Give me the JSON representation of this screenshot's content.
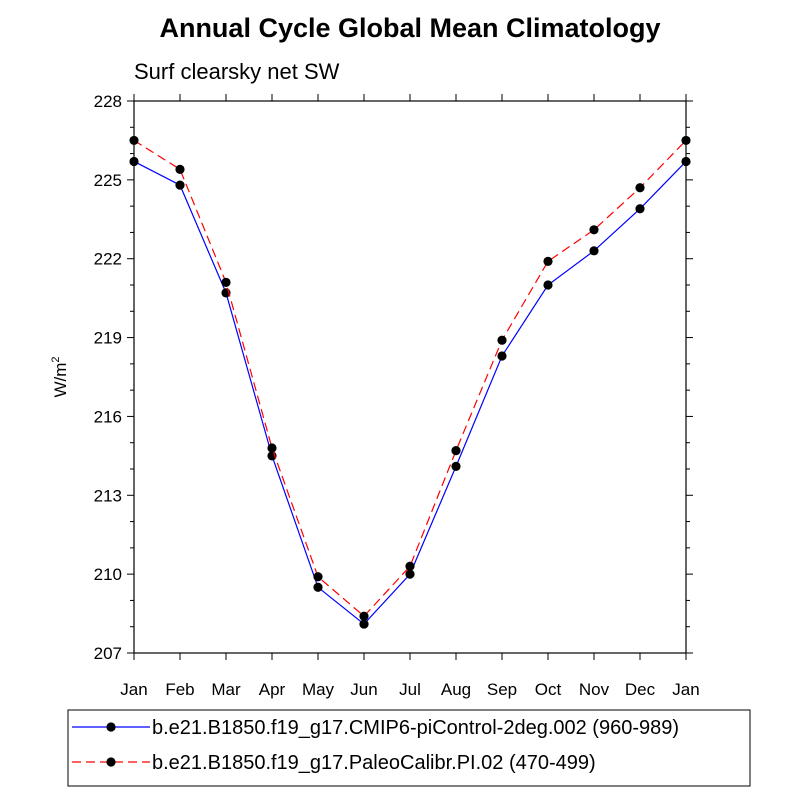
{
  "chart_data": {
    "type": "line",
    "title": "Annual Cycle Global Mean Climatology",
    "subtitle": "Surf clearsky net SW",
    "xlabel": "",
    "ylabel": "W/m",
    "ylabel_sup": "2",
    "categories": [
      "Jan",
      "Feb",
      "Mar",
      "Apr",
      "May",
      "Jun",
      "Jul",
      "Aug",
      "Sep",
      "Oct",
      "Nov",
      "Dec",
      "Jan"
    ],
    "ylim": [
      207,
      228
    ],
    "yticks": [
      207,
      210,
      213,
      216,
      219,
      222,
      225,
      228
    ],
    "ytick_labels": [
      "207",
      "210",
      "213",
      "216",
      "219",
      "222",
      "225",
      "228"
    ],
    "legend_position": "bottom",
    "series": [
      {
        "name": "b.e21.B1850.f19_g17.CMIP6-piControl-2deg.002 (960-989)",
        "color": "#0000ff",
        "dash": "solid",
        "values": [
          225.7,
          224.8,
          220.7,
          214.5,
          209.5,
          208.1,
          210.0,
          214.1,
          218.3,
          221.0,
          222.3,
          223.9,
          225.7
        ]
      },
      {
        "name": "b.e21.B1850.f19_g17.PaleoCalibr.PI.02 (470-499)",
        "color": "#ff0000",
        "dash": "dashed",
        "values": [
          226.5,
          225.4,
          221.1,
          214.8,
          209.9,
          208.4,
          210.3,
          214.7,
          218.9,
          221.9,
          223.1,
          224.7,
          226.5
        ]
      }
    ]
  }
}
